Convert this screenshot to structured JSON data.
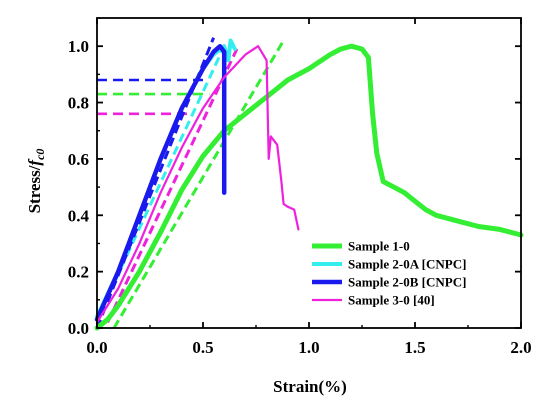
{
  "chart_data": {
    "type": "line",
    "title": "",
    "xlabel": "Strain(%)",
    "ylabel_main": "Stress/",
    "ylabel_italic": "f",
    "ylabel_sub": "c0",
    "xlim": [
      0.0,
      2.0
    ],
    "ylim": [
      0.0,
      1.1
    ],
    "x_ticks": [
      "0.0",
      "0.5",
      "1.0",
      "1.5",
      "2.0"
    ],
    "y_ticks": [
      "0.0",
      "0.2",
      "0.4",
      "0.6",
      "0.8",
      "1.0"
    ],
    "legend_position": "lower-right",
    "series": [
      {
        "name": "Sample 1-0",
        "color": "#33ee33",
        "points": [
          [
            0.0,
            0.0
          ],
          [
            0.05,
            0.03
          ],
          [
            0.1,
            0.08
          ],
          [
            0.2,
            0.2
          ],
          [
            0.3,
            0.34
          ],
          [
            0.4,
            0.49
          ],
          [
            0.5,
            0.61
          ],
          [
            0.6,
            0.7
          ],
          [
            0.7,
            0.76
          ],
          [
            0.8,
            0.82
          ],
          [
            0.9,
            0.88
          ],
          [
            1.0,
            0.92
          ],
          [
            1.1,
            0.97
          ],
          [
            1.15,
            0.99
          ],
          [
            1.2,
            1.0
          ],
          [
            1.25,
            0.99
          ],
          [
            1.28,
            0.96
          ],
          [
            1.3,
            0.76
          ],
          [
            1.32,
            0.62
          ],
          [
            1.35,
            0.52
          ],
          [
            1.4,
            0.5
          ],
          [
            1.45,
            0.48
          ],
          [
            1.5,
            0.45
          ],
          [
            1.55,
            0.42
          ],
          [
            1.6,
            0.4
          ],
          [
            1.7,
            0.38
          ],
          [
            1.8,
            0.36
          ],
          [
            1.9,
            0.35
          ],
          [
            2.0,
            0.33
          ]
        ]
      },
      {
        "name": "Sample 2-0A [CNPC]",
        "color": "#33eeee",
        "points": [
          [
            0.0,
            0.04
          ],
          [
            0.1,
            0.2
          ],
          [
            0.2,
            0.4
          ],
          [
            0.3,
            0.6
          ],
          [
            0.4,
            0.78
          ],
          [
            0.5,
            0.92
          ],
          [
            0.55,
            0.97
          ],
          [
            0.6,
            1.0
          ],
          [
            0.62,
            0.95
          ],
          [
            0.63,
            1.02
          ],
          [
            0.65,
            0.99
          ]
        ]
      },
      {
        "name": "Sample 2-0B [CNPC]",
        "color": "#1a1aee",
        "points": [
          [
            0.0,
            0.03
          ],
          [
            0.1,
            0.2
          ],
          [
            0.2,
            0.4
          ],
          [
            0.3,
            0.6
          ],
          [
            0.4,
            0.78
          ],
          [
            0.5,
            0.92
          ],
          [
            0.55,
            0.98
          ],
          [
            0.58,
            1.0
          ],
          [
            0.6,
            0.98
          ],
          [
            0.6,
            0.48
          ]
        ]
      },
      {
        "name": "Sample 3-0 [40]",
        "color": "#ee22dd",
        "points": [
          [
            0.0,
            0.02
          ],
          [
            0.1,
            0.14
          ],
          [
            0.2,
            0.3
          ],
          [
            0.3,
            0.48
          ],
          [
            0.4,
            0.64
          ],
          [
            0.5,
            0.78
          ],
          [
            0.6,
            0.89
          ],
          [
            0.7,
            0.97
          ],
          [
            0.76,
            1.0
          ],
          [
            0.8,
            0.95
          ],
          [
            0.81,
            0.6
          ],
          [
            0.82,
            0.68
          ],
          [
            0.85,
            0.65
          ],
          [
            0.87,
            0.52
          ],
          [
            0.88,
            0.44
          ],
          [
            0.9,
            0.43
          ],
          [
            0.93,
            0.42
          ],
          [
            0.95,
            0.35
          ]
        ]
      }
    ],
    "fit_lines": [
      {
        "color": "#33ee33",
        "points": [
          [
            0.08,
            0.0
          ],
          [
            0.88,
            1.02
          ]
        ]
      },
      {
        "color": "#33eeee",
        "points": [
          [
            0.0,
            0.03
          ],
          [
            0.6,
            1.0
          ]
        ]
      },
      {
        "color": "#1a1aee",
        "points": [
          [
            0.0,
            0.0
          ],
          [
            0.55,
            1.03
          ]
        ]
      },
      {
        "color": "#ee22dd",
        "points": [
          [
            0.05,
            0.02
          ],
          [
            0.66,
            0.99
          ]
        ]
      }
    ],
    "ref_lines": [
      {
        "color": "#1a1aee",
        "y": 0.88,
        "x0": 0.0,
        "x1": 0.52
      },
      {
        "color": "#33ee33",
        "y": 0.83,
        "x0": 0.0,
        "x1": 0.53
      },
      {
        "color": "#ee22dd",
        "y": 0.76,
        "x0": 0.0,
        "x1": 0.45
      }
    ]
  }
}
